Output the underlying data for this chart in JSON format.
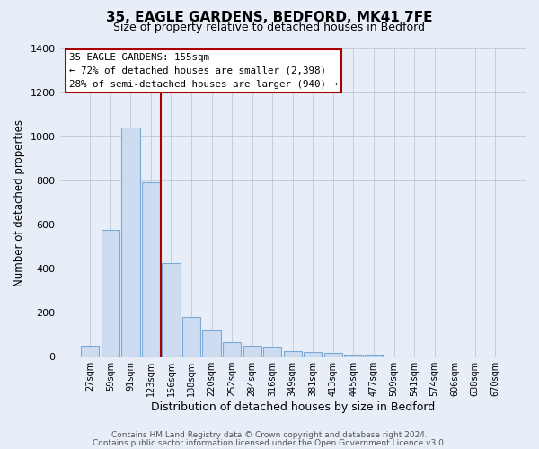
{
  "title": "35, EAGLE GARDENS, BEDFORD, MK41 7FE",
  "subtitle": "Size of property relative to detached houses in Bedford",
  "xlabel": "Distribution of detached houses by size in Bedford",
  "ylabel": "Number of detached properties",
  "bin_labels": [
    "27sqm",
    "59sqm",
    "91sqm",
    "123sqm",
    "156sqm",
    "188sqm",
    "220sqm",
    "252sqm",
    "284sqm",
    "316sqm",
    "349sqm",
    "381sqm",
    "413sqm",
    "445sqm",
    "477sqm",
    "509sqm",
    "541sqm",
    "574sqm",
    "606sqm",
    "638sqm",
    "670sqm"
  ],
  "bar_heights": [
    50,
    575,
    1040,
    790,
    425,
    178,
    120,
    65,
    50,
    47,
    25,
    20,
    15,
    10,
    10,
    0,
    0,
    0,
    0,
    0,
    0
  ],
  "bar_color": "#cddcf0",
  "bar_edge_color": "#7aaad4",
  "vline_x_index": 4,
  "vline_color": "#aa0000",
  "ylim": [
    0,
    1400
  ],
  "yticks": [
    0,
    200,
    400,
    600,
    800,
    1000,
    1200,
    1400
  ],
  "annotation_title": "35 EAGLE GARDENS: 155sqm",
  "annotation_line1": "← 72% of detached houses are smaller (2,398)",
  "annotation_line2": "28% of semi-detached houses are larger (940) →",
  "footer_line1": "Contains HM Land Registry data © Crown copyright and database right 2024.",
  "footer_line2": "Contains public sector information licensed under the Open Government Licence v3.0.",
  "background_color": "#e8eef8",
  "plot_background": "#e8eef8",
  "title_fontsize": 11,
  "subtitle_fontsize": 9
}
